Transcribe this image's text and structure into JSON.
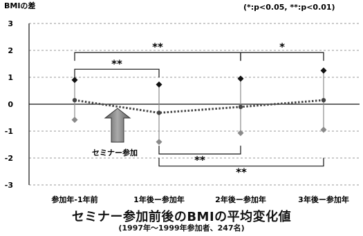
{
  "chart_data": {
    "type": "line",
    "ylabel": "BMIの差",
    "significance_note": "(*:p<0.05, **:p<0.01)",
    "title": "セミナー参加前後のBMIの平均変化値",
    "subtitle": "(1997年～1999年参加者、247名)",
    "categories": [
      "参加年-1年前",
      "1年後ー参加年",
      "2年後ー参加年",
      "3年後ー参加年"
    ],
    "ylim": [
      -3,
      3
    ],
    "yticks": [
      "3",
      "2",
      "1",
      "0",
      "-1",
      "-2",
      "-3"
    ],
    "grid": "horizontal, dashed",
    "series": [
      {
        "role": "upper",
        "marker": "diamond",
        "color": "#111111",
        "values": [
          0.9,
          0.73,
          0.95,
          1.25
        ]
      },
      {
        "role": "mean",
        "marker": "dot",
        "color": "#444444",
        "line": "dotted",
        "values": [
          0.15,
          -0.32,
          -0.1,
          0.15
        ]
      },
      {
        "role": "lower",
        "marker": "diamond",
        "color": "#8a8a8a",
        "values": [
          -0.58,
          -1.4,
          -1.07,
          -0.95
        ]
      }
    ],
    "annotation": {
      "label": "セミナー参加",
      "at_category_position": 0.5,
      "y": -1.8
    },
    "significance": [
      {
        "from": 0,
        "to": 1,
        "y": 1.3,
        "label": "**"
      },
      {
        "from": 0,
        "to": 2,
        "y": 1.92,
        "label": "**"
      },
      {
        "from": 2,
        "to": 3,
        "y": 1.92,
        "label": "*"
      },
      {
        "from": 1,
        "to": 2,
        "y": -1.85,
        "label": "**"
      },
      {
        "from": 1,
        "to": 3,
        "y": -2.3,
        "label": "**"
      }
    ]
  }
}
